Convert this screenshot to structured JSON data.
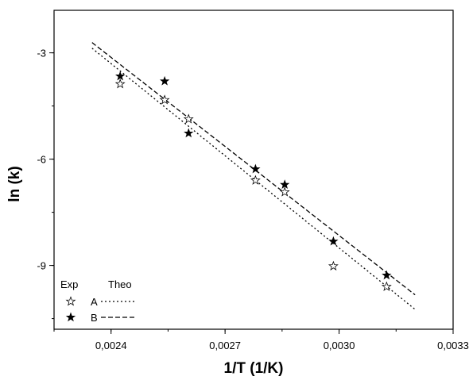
{
  "chart_data": {
    "type": "scatter",
    "title": "",
    "xlabel": "1/T (1/K)",
    "ylabel": "ln (k)",
    "xlim": [
      0.00225,
      0.0033
    ],
    "ylim": [
      -10.8,
      -1.8
    ],
    "grid": false,
    "legend_position": "bottom-left",
    "x_ticks": [
      0.0024,
      0.0027,
      0.003,
      0.0033
    ],
    "x_tick_labels": [
      "0,0024",
      "0,0027",
      "0,0030",
      "0,0033"
    ],
    "y_ticks": [
      -3,
      -6,
      -9
    ],
    "y_tick_labels": [
      "-3",
      "-6",
      "-9"
    ],
    "legend": {
      "header_exp": "Exp",
      "header_theo": "Theo",
      "entries": [
        {
          "series": "A",
          "label": "A",
          "marker": "open-star",
          "line": "dotted"
        },
        {
          "series": "B",
          "label": "B",
          "marker": "filled-star",
          "line": "dashed"
        }
      ]
    },
    "series": [
      {
        "name": "A",
        "marker": "open-star",
        "color": "#000000",
        "points": [
          {
            "x": 0.002424,
            "y": -3.88
          },
          {
            "x": 0.002541,
            "y": -4.33
          },
          {
            "x": 0.002604,
            "y": -4.87
          },
          {
            "x": 0.00278,
            "y": -6.6
          },
          {
            "x": 0.002857,
            "y": -6.93
          },
          {
            "x": 0.002985,
            "y": -9.02
          },
          {
            "x": 0.003125,
            "y": -9.6
          }
        ],
        "fit_line": {
          "style": "dotted",
          "x": [
            0.00235,
            0.0032
          ],
          "y": [
            -2.87,
            -10.24
          ]
        }
      },
      {
        "name": "B",
        "marker": "filled-star",
        "color": "#000000",
        "points": [
          {
            "x": 0.002424,
            "y": -3.66
          },
          {
            "x": 0.002541,
            "y": -3.8
          },
          {
            "x": 0.002604,
            "y": -5.27
          },
          {
            "x": 0.00278,
            "y": -6.28
          },
          {
            "x": 0.002857,
            "y": -6.72
          },
          {
            "x": 0.002985,
            "y": -8.32
          },
          {
            "x": 0.003125,
            "y": -9.28
          }
        ],
        "fit_line": {
          "style": "dashed",
          "x": [
            0.00235,
            0.0032
          ],
          "y": [
            -2.71,
            -9.83
          ]
        }
      }
    ]
  }
}
